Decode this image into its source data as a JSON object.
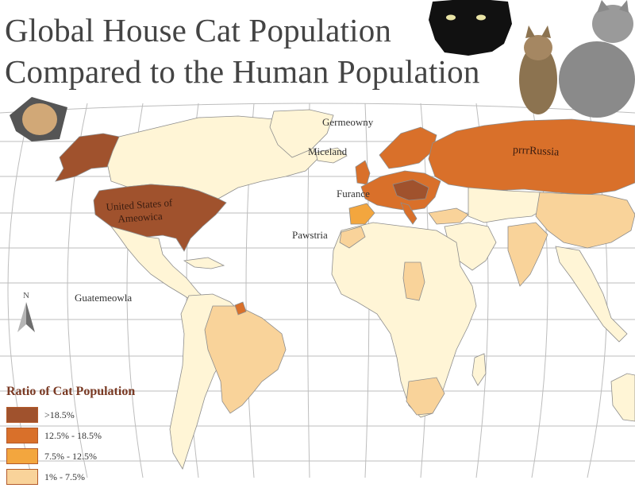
{
  "title_line1": "Global House Cat Population",
  "title_line2": "Compared to the Human Population",
  "map_labels": {
    "germeowny": "Germeowny",
    "miceland": "Miceland",
    "furance": "Furance",
    "pawstria": "Pawstria",
    "guatemeowla": "Guatemeowla",
    "usa_line1": "United States of",
    "usa_line2": "Ameowica",
    "russia": "prrrRussia"
  },
  "compass_letter": "N",
  "legend": {
    "title": "Ratio of Cat Population",
    "items": [
      {
        "label": ">18.5%",
        "color": "#a0522d"
      },
      {
        "label": "12.5% - 18.5%",
        "color": "#d9702a"
      },
      {
        "label": "7.5% - 12.5%",
        "color": "#f3a63e"
      },
      {
        "label": "1% - 7.5%",
        "color": "#f9d39a"
      }
    ]
  },
  "colors": {
    "ocean": "#ffffff",
    "graticule": "#b8b8b8",
    "land_pale": "#fff5d6",
    "land_light": "#f9d39a",
    "land_mid": "#f3a63e",
    "land_strong": "#d9702a",
    "land_dark": "#a0522d",
    "border": "#8d8d8d"
  }
}
